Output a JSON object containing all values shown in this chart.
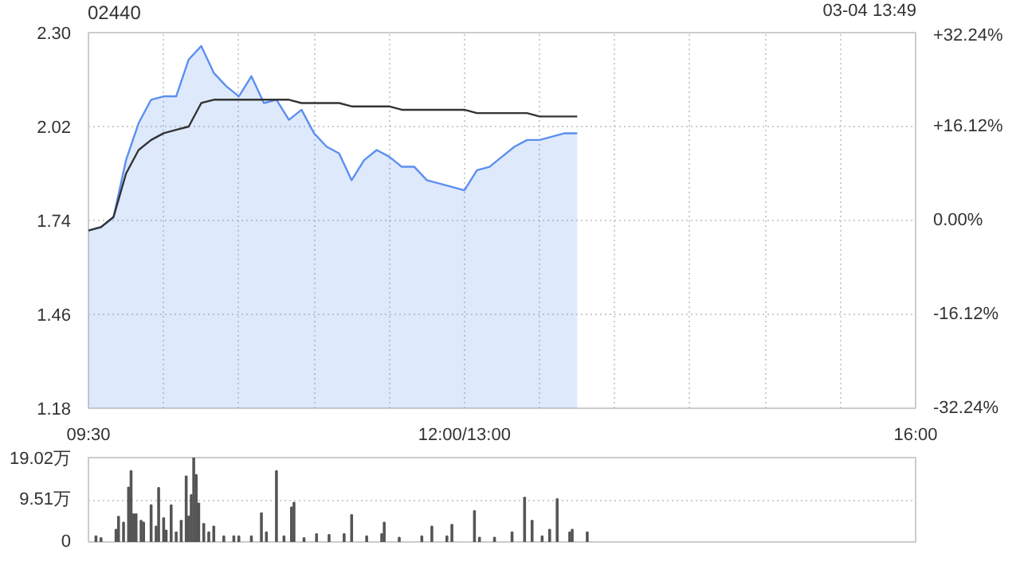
{
  "chart_data": [
    {
      "type": "area",
      "title": "02440",
      "annotations": [
        "03-04 13:49"
      ],
      "categories": [
        "09:30",
        null,
        null,
        null,
        null,
        null,
        null,
        null,
        null,
        null,
        null,
        null,
        null,
        null,
        null,
        null,
        null,
        null,
        null,
        null,
        null,
        null,
        null,
        null,
        null,
        null,
        null,
        null,
        null,
        null,
        "12:00/13:00",
        null,
        null,
        null,
        null,
        null,
        null,
        null,
        null,
        null,
        null,
        null,
        null,
        null,
        null,
        null,
        null,
        null,
        null,
        null,
        null,
        null,
        null,
        null,
        null,
        null,
        null,
        null,
        null,
        null,
        null,
        null,
        null,
        null,
        null,
        null,
        "16:00"
      ],
      "ylim": [
        1.18,
        2.3
      ],
      "yticks": [
        {
          "value": 1.18,
          "label": "1.18"
        },
        {
          "value": 1.46,
          "label": "1.46"
        },
        {
          "value": 1.74,
          "label": "1.74"
        },
        {
          "value": 2.02,
          "label": "2.02"
        },
        {
          "value": 2.3,
          "label": "2.30"
        }
      ],
      "y2lim": [
        -32.24,
        32.24
      ],
      "y2ticks": [
        {
          "value": -32.24,
          "label": "-32.24%"
        },
        {
          "value": -16.12,
          "label": "-16.12%"
        },
        {
          "value": 0,
          "label": "0.00%"
        },
        {
          "value": 16.12,
          "label": "+16.12%"
        },
        {
          "value": 32.24,
          "label": "+32.24%"
        }
      ],
      "grid": true,
      "series": [
        {
          "type": "area",
          "color": "#5b8ff0",
          "values": [
            1.71,
            1.72,
            1.75,
            1.92,
            2.03,
            2.1,
            2.11,
            2.11,
            2.22,
            2.26,
            2.18,
            2.14,
            2.11,
            2.17,
            2.09,
            2.1,
            2.04,
            2.07,
            2.0,
            1.96,
            1.94,
            1.86,
            1.92,
            1.95,
            1.93,
            1.9,
            1.9,
            1.86,
            1.85,
            1.84,
            1.83,
            1.89,
            1.9,
            1.93,
            1.96,
            1.98,
            1.98,
            1.99,
            2.0,
            2.0,
            null,
            null,
            null,
            null,
            null,
            null,
            null,
            null,
            null,
            null,
            null,
            null,
            null,
            null,
            null,
            null,
            null,
            null,
            null,
            null,
            null,
            null,
            null,
            null,
            null,
            null,
            null
          ]
        },
        {
          "type": "line",
          "color": "#333333",
          "values": [
            1.71,
            1.72,
            1.75,
            1.88,
            1.95,
            1.98,
            2.0,
            2.01,
            2.02,
            2.09,
            2.1,
            2.1,
            2.1,
            2.1,
            2.1,
            2.1,
            2.1,
            2.09,
            2.09,
            2.09,
            2.09,
            2.08,
            2.08,
            2.08,
            2.08,
            2.07,
            2.07,
            2.07,
            2.07,
            2.07,
            2.07,
            2.06,
            2.06,
            2.06,
            2.06,
            2.06,
            2.05,
            2.05,
            2.05,
            2.05,
            null,
            null,
            null,
            null,
            null,
            null,
            null,
            null,
            null,
            null,
            null,
            null,
            null,
            null,
            null,
            null,
            null,
            null,
            null,
            null,
            null,
            null,
            null,
            null,
            null,
            null,
            null
          ]
        }
      ]
    },
    {
      "type": "bar",
      "ylim": [
        0,
        19.02
      ],
      "yticks": [
        0,
        {
          "value": 9.51,
          "label": "9.51万"
        },
        {
          "value": 19.02,
          "label": "19.02万"
        }
      ],
      "grid": "y",
      "tick_labels": "y",
      "categories": [
        null,
        null,
        null,
        null,
        null,
        null,
        null,
        null,
        null,
        null,
        null,
        null,
        null,
        null,
        null,
        null,
        null,
        null,
        null,
        null,
        null,
        null,
        null,
        null,
        null,
        null,
        null,
        null,
        null,
        null,
        null,
        null,
        null,
        null,
        null,
        null,
        null,
        null,
        null,
        null,
        null,
        null,
        null,
        null,
        null,
        null,
        null,
        null,
        null,
        null,
        null,
        null,
        null,
        null,
        null,
        null,
        null,
        null,
        null,
        null,
        null,
        null,
        null,
        null,
        null,
        null,
        null,
        null,
        null,
        null,
        null,
        null,
        null,
        null,
        null,
        null,
        null,
        null,
        null,
        null,
        null,
        null,
        null,
        null,
        null,
        null,
        null,
        null,
        null,
        null,
        null,
        null,
        null,
        null,
        null,
        null,
        null,
        null,
        null,
        null,
        null,
        null,
        null,
        null,
        null,
        null,
        null,
        null,
        null,
        null,
        null,
        null,
        null,
        null,
        null,
        null,
        null,
        null,
        null,
        null,
        null,
        null,
        null,
        null,
        null,
        null,
        null,
        null,
        null,
        null,
        null,
        null,
        null,
        null,
        null,
        null,
        null,
        null,
        null,
        null,
        null,
        null,
        null,
        null,
        null,
        null,
        null,
        null,
        null,
        null,
        null,
        null,
        null,
        null,
        null,
        null,
        null,
        null,
        null,
        null,
        null,
        null,
        null,
        null,
        null,
        null,
        null,
        null,
        null,
        null,
        null,
        null,
        null,
        null,
        null,
        null,
        null,
        null,
        null,
        null,
        null,
        null,
        null,
        null,
        null,
        null,
        null,
        null,
        null,
        null,
        null,
        null,
        null,
        null,
        null,
        null,
        null,
        null,
        null,
        null,
        null,
        null,
        null,
        null,
        null,
        null,
        null,
        null,
        null,
        null,
        null,
        null,
        null,
        null,
        null,
        null,
        null,
        null,
        null,
        null,
        null,
        null,
        null,
        null,
        null,
        null,
        null,
        null,
        null,
        null,
        null,
        null,
        null,
        null,
        null,
        null,
        null,
        null,
        null,
        null,
        null,
        null,
        null,
        null,
        null,
        null,
        null,
        null,
        null,
        null,
        null,
        null,
        null,
        null,
        null,
        null,
        null,
        null,
        null,
        null,
        null,
        null,
        null,
        null,
        null,
        null,
        null,
        null,
        null,
        null,
        null,
        null,
        null,
        null,
        null,
        null,
        null,
        null,
        null,
        null,
        null,
        null,
        null,
        null,
        null,
        null,
        null,
        null,
        null,
        null,
        null,
        null,
        null,
        null,
        null,
        null,
        null,
        null,
        null,
        null,
        null,
        null,
        null,
        null,
        null,
        null,
        null,
        null,
        null,
        null,
        null,
        null,
        null,
        null,
        null,
        null,
        null,
        null,
        null,
        null,
        null,
        null,
        null,
        null,
        null,
        null,
        null,
        null,
        null,
        null,
        null
      ],
      "series": [
        {
          "color": "#555555",
          "values": [
            null,
            null,
            null,
            1.3,
            null,
            0.9,
            null,
            null,
            null,
            null,
            null,
            2.8,
            5.7,
            null,
            4.4,
            null,
            12.3,
            16.0,
            6.3,
            6.3,
            null,
            4.8,
            4.4,
            null,
            null,
            8.3,
            null,
            3.5,
            12.2,
            null,
            5.4,
            2.6,
            null,
            8.3,
            null,
            2.2,
            null,
            4.8,
            null,
            14.8,
            5.8,
            10.6,
            19.0,
            15.1,
            8.7,
            null,
            4.1,
            null,
            2.2,
            null,
            3.5,
            null,
            null,
            null,
            1.3,
            null,
            null,
            null,
            1.3,
            null,
            1.3,
            null,
            null,
            null,
            null,
            1.3,
            null,
            null,
            null,
            6.5,
            null,
            2.2,
            null,
            null,
            null,
            16.0,
            null,
            null,
            1.3,
            null,
            null,
            7.8,
            8.9,
            null,
            null,
            null,
            0.9,
            null,
            null,
            null,
            null,
            1.8,
            null,
            null,
            null,
            null,
            1.6,
            null,
            null,
            null,
            null,
            null,
            1.8,
            null,
            null,
            6.1,
            null,
            null,
            null,
            null,
            null,
            1.3,
            null,
            null,
            null,
            null,
            null,
            1.8,
            4.4,
            null,
            null,
            null,
            null,
            null,
            1.0,
            null,
            null,
            null,
            null,
            null,
            null,
            null,
            null,
            1.3,
            null,
            null,
            null,
            3.5,
            null,
            null,
            null,
            null,
            null,
            1.3,
            null,
            3.9,
            null,
            null,
            null,
            null,
            null,
            null,
            null,
            null,
            7.0,
            null,
            1.0,
            null,
            null,
            null,
            null,
            null,
            1.0,
            null,
            null,
            null,
            null,
            null,
            null,
            2.2,
            null,
            null,
            null,
            null,
            10.0,
            null,
            null,
            4.8,
            null,
            null,
            null,
            1.3,
            null,
            null,
            2.8,
            null,
            null,
            9.7,
            null,
            null,
            null,
            null,
            2.2,
            2.8,
            null,
            null,
            null,
            null,
            null,
            2.2,
            null,
            null,
            null,
            null,
            null,
            null,
            null,
            null,
            null,
            null,
            null,
            null,
            null,
            null,
            null,
            null,
            null,
            null,
            null,
            null,
            null,
            null,
            null,
            null,
            null,
            null,
            null,
            null,
            null,
            null,
            null,
            null,
            null,
            null,
            null,
            null,
            null,
            null,
            null,
            null,
            null,
            null,
            null,
            null,
            null,
            null,
            null,
            null,
            null,
            null,
            null,
            null,
            null,
            null,
            null,
            null,
            null,
            null,
            null,
            null,
            null,
            null,
            null,
            null,
            null,
            null,
            null,
            null,
            null,
            null,
            null,
            null,
            null,
            null,
            null,
            null,
            null,
            null,
            null,
            null,
            null,
            null,
            null,
            null,
            null,
            null,
            null,
            null,
            null,
            null,
            null,
            null,
            null,
            null,
            null,
            null,
            null,
            null,
            null,
            null,
            null,
            null,
            null,
            null,
            null,
            null,
            null,
            null,
            null,
            null,
            null,
            null,
            null,
            null,
            null,
            null,
            null,
            null,
            null,
            null,
            null,
            null,
            null,
            null,
            null,
            null,
            null,
            null,
            null,
            null,
            null
          ]
        }
      ]
    }
  ]
}
